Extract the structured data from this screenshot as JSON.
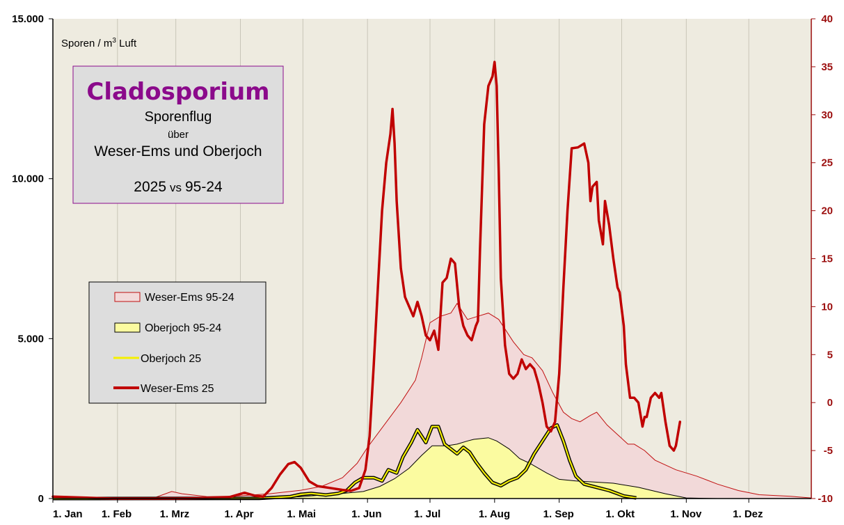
{
  "unit_label": {
    "main": "Sporen / m",
    "sup": "3",
    "tail": " Luft"
  },
  "title_box": {
    "title": "Cladosporium",
    "line1": "Sporenflug",
    "line2": "über",
    "line3": "Weser-Ems und Oberjoch",
    "line4_main": "2025",
    "line4_vs": "vs",
    "line4_tail": "95-24"
  },
  "legend": {
    "items": [
      {
        "label": "Weser-Ems 95-24",
        "kind": "area",
        "fill": "#f2d9d9",
        "stroke": "#c01010"
      },
      {
        "label": "Oberjoch 95-24",
        "kind": "area",
        "fill": "#fbfba0",
        "stroke": "#000000"
      },
      {
        "label": "Oberjoch 25",
        "kind": "line",
        "color": "#f5f000"
      },
      {
        "label": "Weser-Ems 25",
        "kind": "line",
        "color": "#c00000"
      }
    ]
  },
  "colors": {
    "plot_background": "#eeebe0",
    "grid": "#c8c5b8",
    "weser_ems_area_fill": "#f2d9d9",
    "weser_ems_area_line": "#c01010",
    "oberjoch_area_fill": "#fbfba0",
    "oberjoch_25": "#f5f000",
    "weser_ems_25": "#c00000",
    "right_axis": "#9b0d0d",
    "title": "#8b0a8b"
  },
  "chart_data": {
    "type": "area",
    "x_unit": "day of year",
    "xlim": [
      1,
      365
    ],
    "x_ticks": [
      {
        "label": "1. Jan",
        "day": 1
      },
      {
        "label": "1. Feb",
        "day": 32
      },
      {
        "label": "1. Mrz",
        "day": 60
      },
      {
        "label": "1. Apr",
        "day": 91
      },
      {
        "label": "1. Mai",
        "day": 121
      },
      {
        "label": "1. Jun",
        "day": 152
      },
      {
        "label": "1. Jul",
        "day": 182
      },
      {
        "label": "1. Aug",
        "day": 213
      },
      {
        "label": "1. Sep",
        "day": 244
      },
      {
        "label": "1. Okt",
        "day": 274
      },
      {
        "label": "1. Nov",
        "day": 305
      },
      {
        "label": "1. Dez",
        "day": 335
      }
    ],
    "y_left": {
      "ylim": [
        0,
        15000
      ],
      "ticks": [
        {
          "label": "0",
          "value": 0
        },
        {
          "label": "5.000",
          "value": 5000
        },
        {
          "label": "10.000",
          "value": 10000
        },
        {
          "label": "15.000",
          "value": 15000
        }
      ]
    },
    "y_right": {
      "ylim": [
        -10,
        40
      ],
      "ticks": [
        {
          "label": "-10",
          "value": -10
        },
        {
          "label": "-5",
          "value": -5
        },
        {
          "label": "0",
          "value": 0
        },
        {
          "label": "5",
          "value": 5
        },
        {
          "label": "10",
          "value": 10
        },
        {
          "label": "15",
          "value": 15
        },
        {
          "label": "20",
          "value": 20
        },
        {
          "label": "25",
          "value": 25
        },
        {
          "label": "30",
          "value": 30
        },
        {
          "label": "35",
          "value": 35
        },
        {
          "label": "40",
          "value": 40
        }
      ]
    },
    "grid": "vertical",
    "legend_position": "middle-left",
    "series": [
      {
        "name": "Weser-Ems 95-24",
        "type": "area",
        "axis": "left",
        "points": [
          [
            1,
            20
          ],
          [
            30,
            20
          ],
          [
            50,
            30
          ],
          [
            58,
            220
          ],
          [
            63,
            150
          ],
          [
            75,
            60
          ],
          [
            90,
            80
          ],
          [
            105,
            150
          ],
          [
            120,
            260
          ],
          [
            130,
            380
          ],
          [
            140,
            650
          ],
          [
            147,
            1100
          ],
          [
            152,
            1600
          ],
          [
            160,
            2300
          ],
          [
            168,
            3000
          ],
          [
            175,
            3700
          ],
          [
            178,
            4400
          ],
          [
            182,
            5500
          ],
          [
            187,
            5700
          ],
          [
            192,
            5800
          ],
          [
            195,
            6100
          ],
          [
            200,
            5600
          ],
          [
            205,
            5700
          ],
          [
            210,
            5800
          ],
          [
            215,
            5600
          ],
          [
            222,
            4900
          ],
          [
            227,
            4500
          ],
          [
            231,
            4400
          ],
          [
            236,
            4000
          ],
          [
            241,
            3300
          ],
          [
            246,
            2700
          ],
          [
            250,
            2500
          ],
          [
            254,
            2400
          ],
          [
            259,
            2600
          ],
          [
            262,
            2700
          ],
          [
            267,
            2300
          ],
          [
            272,
            2000
          ],
          [
            277,
            1700
          ],
          [
            280,
            1700
          ],
          [
            285,
            1500
          ],
          [
            290,
            1200
          ],
          [
            300,
            900
          ],
          [
            310,
            700
          ],
          [
            320,
            450
          ],
          [
            330,
            250
          ],
          [
            340,
            120
          ],
          [
            355,
            70
          ],
          [
            365,
            20
          ]
        ]
      },
      {
        "name": "Oberjoch 95-24",
        "type": "area",
        "axis": "left",
        "points": [
          [
            1,
            0
          ],
          [
            90,
            0
          ],
          [
            105,
            10
          ],
          [
            120,
            60
          ],
          [
            135,
            130
          ],
          [
            150,
            220
          ],
          [
            158,
            380
          ],
          [
            165,
            620
          ],
          [
            172,
            950
          ],
          [
            178,
            1350
          ],
          [
            183,
            1650
          ],
          [
            190,
            1650
          ],
          [
            195,
            1700
          ],
          [
            200,
            1800
          ],
          [
            203,
            1850
          ],
          [
            210,
            1900
          ],
          [
            214,
            1800
          ],
          [
            220,
            1550
          ],
          [
            225,
            1250
          ],
          [
            230,
            1100
          ],
          [
            238,
            800
          ],
          [
            244,
            600
          ],
          [
            252,
            550
          ],
          [
            260,
            520
          ],
          [
            270,
            480
          ],
          [
            282,
            350
          ],
          [
            295,
            150
          ],
          [
            305,
            20
          ],
          [
            320,
            0
          ],
          [
            365,
            0
          ]
        ]
      },
      {
        "name": "Oberjoch 25",
        "type": "line",
        "axis": "left",
        "points": [
          [
            1,
            0
          ],
          [
            100,
            5
          ],
          [
            115,
            60
          ],
          [
            120,
            130
          ],
          [
            125,
            160
          ],
          [
            132,
            110
          ],
          [
            138,
            160
          ],
          [
            142,
            250
          ],
          [
            146,
            500
          ],
          [
            150,
            650
          ],
          [
            155,
            650
          ],
          [
            159,
            550
          ],
          [
            162,
            900
          ],
          [
            166,
            800
          ],
          [
            169,
            1300
          ],
          [
            173,
            1750
          ],
          [
            176,
            2150
          ],
          [
            180,
            1750
          ],
          [
            183,
            2250
          ],
          [
            186,
            2250
          ],
          [
            189,
            1700
          ],
          [
            192,
            1550
          ],
          [
            195,
            1400
          ],
          [
            198,
            1600
          ],
          [
            201,
            1450
          ],
          [
            204,
            1150
          ],
          [
            208,
            800
          ],
          [
            212,
            500
          ],
          [
            216,
            400
          ],
          [
            220,
            550
          ],
          [
            224,
            650
          ],
          [
            228,
            900
          ],
          [
            232,
            1400
          ],
          [
            236,
            1800
          ],
          [
            240,
            2200
          ],
          [
            243,
            2300
          ],
          [
            246,
            1800
          ],
          [
            249,
            1200
          ],
          [
            252,
            700
          ],
          [
            256,
            450
          ],
          [
            262,
            350
          ],
          [
            268,
            250
          ],
          [
            275,
            80
          ],
          [
            281,
            20
          ]
        ]
      },
      {
        "name": "Weser-Ems 25",
        "type": "line",
        "axis": "right",
        "points": [
          [
            1,
            -9.8
          ],
          [
            30,
            -10
          ],
          [
            60,
            -10
          ],
          [
            85,
            -9.9
          ],
          [
            93,
            -9.4
          ],
          [
            98,
            -9.7
          ],
          [
            102,
            -9.8
          ],
          [
            106,
            -8.9
          ],
          [
            110,
            -7.5
          ],
          [
            114,
            -6.4
          ],
          [
            117,
            -6.2
          ],
          [
            120,
            -6.8
          ],
          [
            124,
            -8.2
          ],
          [
            128,
            -8.7
          ],
          [
            134,
            -8.9
          ],
          [
            140,
            -9.1
          ],
          [
            144,
            -9.2
          ],
          [
            148,
            -8.9
          ],
          [
            151,
            -7.0
          ],
          [
            153,
            -3.5
          ],
          [
            155,
            4.0
          ],
          [
            157,
            12.0
          ],
          [
            159,
            20.0
          ],
          [
            161,
            25.0
          ],
          [
            163,
            28.0
          ],
          [
            164,
            30.6
          ],
          [
            165,
            27.0
          ],
          [
            166,
            21.0
          ],
          [
            168,
            14.0
          ],
          [
            170,
            11.0
          ],
          [
            172,
            10.0
          ],
          [
            174,
            9.0
          ],
          [
            176,
            10.5
          ],
          [
            178,
            9.0
          ],
          [
            180,
            7.0
          ],
          [
            182,
            6.5
          ],
          [
            184,
            7.5
          ],
          [
            186,
            5.5
          ],
          [
            188,
            12.5
          ],
          [
            190,
            13.0
          ],
          [
            192,
            15.0
          ],
          [
            194,
            14.5
          ],
          [
            196,
            10.0
          ],
          [
            198,
            8.0
          ],
          [
            200,
            7.0
          ],
          [
            202,
            6.5
          ],
          [
            204,
            8.0
          ],
          [
            205,
            8.5
          ],
          [
            206,
            16.0
          ],
          [
            208,
            29.0
          ],
          [
            210,
            33.0
          ],
          [
            212,
            34.0
          ],
          [
            213,
            35.5
          ],
          [
            214,
            33.0
          ],
          [
            215,
            24.0
          ],
          [
            216,
            13.0
          ],
          [
            218,
            6.0
          ],
          [
            220,
            3.0
          ],
          [
            222,
            2.5
          ],
          [
            224,
            3.0
          ],
          [
            226,
            4.5
          ],
          [
            228,
            3.5
          ],
          [
            230,
            4.0
          ],
          [
            232,
            3.5
          ],
          [
            234,
            2.0
          ],
          [
            236,
            0.0
          ],
          [
            238,
            -2.5
          ],
          [
            240,
            -3.0
          ],
          [
            242,
            -2.0
          ],
          [
            244,
            3.0
          ],
          [
            246,
            12.0
          ],
          [
            248,
            20.0
          ],
          [
            250,
            26.5
          ],
          [
            253,
            26.6
          ],
          [
            256,
            27.0
          ],
          [
            258,
            25.0
          ],
          [
            259,
            21.0
          ],
          [
            260,
            22.5
          ],
          [
            262,
            23.0
          ],
          [
            263,
            19.0
          ],
          [
            265,
            16.5
          ],
          [
            266,
            21.0
          ],
          [
            268,
            18.5
          ],
          [
            270,
            15.0
          ],
          [
            272,
            12.0
          ],
          [
            273,
            11.5
          ],
          [
            275,
            8.0
          ],
          [
            276,
            4.0
          ],
          [
            278,
            0.5
          ],
          [
            280,
            0.5
          ],
          [
            282,
            0.0
          ],
          [
            284,
            -2.5
          ],
          [
            285,
            -1.5
          ],
          [
            286,
            -1.5
          ],
          [
            288,
            0.5
          ],
          [
            290,
            1.0
          ],
          [
            292,
            0.5
          ],
          [
            293,
            1.0
          ],
          [
            295,
            -2.0
          ],
          [
            297,
            -4.5
          ],
          [
            299,
            -5.0
          ],
          [
            300,
            -4.5
          ],
          [
            302,
            -2.0
          ]
        ]
      }
    ]
  }
}
